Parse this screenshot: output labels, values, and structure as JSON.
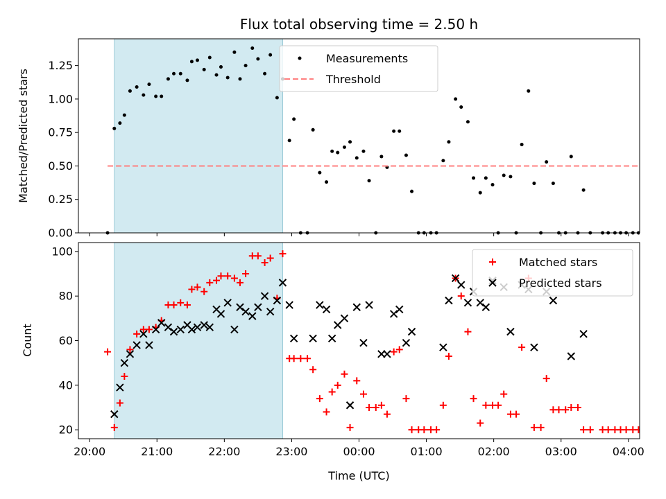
{
  "chart_data": [
    {
      "type": "scatter",
      "title": "Flux total observing time = 2.50 h",
      "xlabel": "",
      "ylabel": "Matched/Predicted stars",
      "xlim": [
        "20:00",
        "04:00"
      ],
      "ylim": [
        0,
        1.45
      ],
      "yticks": [
        0.0,
        0.25,
        0.5,
        0.75,
        1.0,
        1.25
      ],
      "ytick_labels": [
        "0.00",
        "0.25",
        "0.50",
        "0.75",
        "1.00",
        "1.25"
      ],
      "legend_position": "top-center",
      "grid": false,
      "shaded_span": {
        "x_start": "20:22",
        "x_end": "22:52",
        "color": "#add8e6"
      },
      "series": [
        {
          "name": "Measurements",
          "marker": "dot",
          "color": "#000000",
          "points": [
            [
              "20:16",
              0.0
            ],
            [
              "20:22",
              0.78
            ],
            [
              "20:27",
              0.82
            ],
            [
              "20:31",
              0.88
            ],
            [
              "20:36",
              1.06
            ],
            [
              "20:42",
              1.09
            ],
            [
              "20:48",
              1.03
            ],
            [
              "20:53",
              1.11
            ],
            [
              "20:59",
              1.02
            ],
            [
              "21:04",
              1.02
            ],
            [
              "21:10",
              1.15
            ],
            [
              "21:15",
              1.19
            ],
            [
              "21:21",
              1.19
            ],
            [
              "21:27",
              1.14
            ],
            [
              "21:31",
              1.28
            ],
            [
              "21:36",
              1.29
            ],
            [
              "21:42",
              1.22
            ],
            [
              "21:47",
              1.31
            ],
            [
              "21:53",
              1.18
            ],
            [
              "21:57",
              1.24
            ],
            [
              "22:03",
              1.16
            ],
            [
              "22:09",
              1.35
            ],
            [
              "22:14",
              1.15
            ],
            [
              "22:19",
              1.25
            ],
            [
              "22:25",
              1.38
            ],
            [
              "22:30",
              1.3
            ],
            [
              "22:36",
              1.19
            ],
            [
              "22:41",
              1.33
            ],
            [
              "22:47",
              1.01
            ],
            [
              "22:52",
              1.15
            ],
            [
              "22:58",
              0.69
            ],
            [
              "23:02",
              0.85
            ],
            [
              "23:08",
              0.0
            ],
            [
              "23:14",
              0.0
            ],
            [
              "23:19",
              0.77
            ],
            [
              "23:25",
              0.45
            ],
            [
              "23:31",
              0.38
            ],
            [
              "23:36",
              0.61
            ],
            [
              "23:41",
              0.6
            ],
            [
              "23:47",
              0.64
            ],
            [
              "23:52",
              0.68
            ],
            [
              "23:58",
              0.56
            ],
            [
              "00:04",
              0.61
            ],
            [
              "00:09",
              0.39
            ],
            [
              "00:15",
              0.0
            ],
            [
              "00:20",
              0.57
            ],
            [
              "00:25",
              0.49
            ],
            [
              "00:31",
              0.76
            ],
            [
              "00:36",
              0.76
            ],
            [
              "00:42",
              0.58
            ],
            [
              "00:47",
              0.31
            ],
            [
              "00:53",
              0.0
            ],
            [
              "00:58",
              0.0
            ],
            [
              "01:04",
              0.0
            ],
            [
              "01:09",
              0.0
            ],
            [
              "01:15",
              0.54
            ],
            [
              "01:20",
              0.68
            ],
            [
              "01:26",
              1.0
            ],
            [
              "01:31",
              0.94
            ],
            [
              "01:37",
              0.83
            ],
            [
              "01:42",
              0.41
            ],
            [
              "01:48",
              0.3
            ],
            [
              "01:53",
              0.41
            ],
            [
              "01:59",
              0.36
            ],
            [
              "02:04",
              0.0
            ],
            [
              "02:09",
              0.43
            ],
            [
              "02:15",
              0.42
            ],
            [
              "02:20",
              0.0
            ],
            [
              "02:25",
              0.66
            ],
            [
              "02:31",
              1.06
            ],
            [
              "02:36",
              0.37
            ],
            [
              "02:42",
              0.0
            ],
            [
              "02:47",
              0.53
            ],
            [
              "02:53",
              0.37
            ],
            [
              "02:58",
              0.0
            ],
            [
              "03:04",
              0.0
            ],
            [
              "03:09",
              0.57
            ],
            [
              "03:15",
              0.0
            ],
            [
              "03:20",
              0.32
            ],
            [
              "03:26",
              0.0
            ],
            [
              "03:37",
              0.0
            ],
            [
              "03:42",
              0.0
            ],
            [
              "03:48",
              0.0
            ],
            [
              "03:53",
              0.0
            ],
            [
              "03:58",
              0.0
            ],
            [
              "04:04",
              0.0
            ],
            [
              "04:09",
              0.0
            ],
            [
              "04:15",
              0.0
            ],
            [
              "04:20",
              0.0
            ]
          ]
        },
        {
          "name": "Threshold",
          "marker": "dashed-line",
          "color": "#ff7f7f",
          "points": [
            [
              "20:16",
              0.5
            ],
            [
              "04:20",
              0.5
            ]
          ]
        }
      ]
    },
    {
      "type": "scatter",
      "title": "",
      "xlabel": "Time (UTC)",
      "ylabel": "Count",
      "xlim": [
        "20:00",
        "04:00"
      ],
      "ylim": [
        16,
        104
      ],
      "yticks": [
        20,
        40,
        60,
        80,
        100
      ],
      "ytick_labels": [
        "20",
        "40",
        "60",
        "80",
        "100"
      ],
      "xticks": [
        "20:00",
        "21:00",
        "22:00",
        "23:00",
        "00:00",
        "01:00",
        "02:00",
        "03:00",
        "04:00"
      ],
      "legend_position": "top-right",
      "grid": false,
      "shaded_span": {
        "x_start": "20:22",
        "x_end": "22:52",
        "color": "#add8e6"
      },
      "series": [
        {
          "name": "Matched stars",
          "marker": "plus",
          "color": "#ff0000",
          "points": [
            [
              "20:16",
              55
            ],
            [
              "20:22",
              21
            ],
            [
              "20:27",
              32
            ],
            [
              "20:31",
              44
            ],
            [
              "20:36",
              56
            ],
            [
              "20:42",
              63
            ],
            [
              "20:48",
              65
            ],
            [
              "20:53",
              65
            ],
            [
              "20:59",
              66
            ],
            [
              "21:04",
              69
            ],
            [
              "21:10",
              76
            ],
            [
              "21:15",
              76
            ],
            [
              "21:21",
              77
            ],
            [
              "21:27",
              76
            ],
            [
              "21:31",
              83
            ],
            [
              "21:36",
              84
            ],
            [
              "21:42",
              82
            ],
            [
              "21:47",
              86
            ],
            [
              "21:53",
              87
            ],
            [
              "21:57",
              89
            ],
            [
              "22:03",
              89
            ],
            [
              "22:09",
              88
            ],
            [
              "22:14",
              86
            ],
            [
              "22:19",
              90
            ],
            [
              "22:25",
              98
            ],
            [
              "22:30",
              98
            ],
            [
              "22:36",
              95
            ],
            [
              "22:41",
              97
            ],
            [
              "22:47",
              79
            ],
            [
              "22:52",
              99
            ],
            [
              "22:58",
              52
            ],
            [
              "23:02",
              52
            ],
            [
              "23:08",
              52
            ],
            [
              "23:14",
              52
            ],
            [
              "23:19",
              47
            ],
            [
              "23:25",
              34
            ],
            [
              "23:31",
              28
            ],
            [
              "23:36",
              37
            ],
            [
              "23:41",
              40
            ],
            [
              "23:47",
              45
            ],
            [
              "23:52",
              21
            ],
            [
              "23:58",
              42
            ],
            [
              "00:04",
              36
            ],
            [
              "00:09",
              30
            ],
            [
              "00:15",
              30
            ],
            [
              "00:20",
              31
            ],
            [
              "00:25",
              27
            ],
            [
              "00:31",
              55
            ],
            [
              "00:36",
              56
            ],
            [
              "00:42",
              34
            ],
            [
              "00:47",
              20
            ],
            [
              "00:53",
              20
            ],
            [
              "00:58",
              20
            ],
            [
              "01:04",
              20
            ],
            [
              "01:09",
              20
            ],
            [
              "01:15",
              31
            ],
            [
              "01:20",
              53
            ],
            [
              "01:26",
              88
            ],
            [
              "01:31",
              80
            ],
            [
              "01:37",
              64
            ],
            [
              "01:42",
              34
            ],
            [
              "01:48",
              23
            ],
            [
              "01:53",
              31
            ],
            [
              "01:59",
              31
            ],
            [
              "02:04",
              31
            ],
            [
              "02:09",
              36
            ],
            [
              "02:15",
              27
            ],
            [
              "02:20",
              27
            ],
            [
              "02:25",
              57
            ],
            [
              "02:31",
              88
            ],
            [
              "02:36",
              21
            ],
            [
              "02:42",
              21
            ],
            [
              "02:47",
              43
            ],
            [
              "02:53",
              29
            ],
            [
              "02:58",
              29
            ],
            [
              "03:04",
              29
            ],
            [
              "03:09",
              30
            ],
            [
              "03:15",
              30
            ],
            [
              "03:20",
              20
            ],
            [
              "03:26",
              20
            ],
            [
              "03:37",
              20
            ],
            [
              "03:42",
              20
            ],
            [
              "03:48",
              20
            ],
            [
              "03:53",
              20
            ],
            [
              "03:58",
              20
            ],
            [
              "04:04",
              20
            ],
            [
              "04:09",
              20
            ],
            [
              "04:15",
              20
            ],
            [
              "04:20",
              20
            ]
          ]
        },
        {
          "name": "Predicted stars",
          "marker": "x",
          "color": "#000000",
          "points": [
            [
              "20:22",
              27
            ],
            [
              "20:27",
              39
            ],
            [
              "20:31",
              50
            ],
            [
              "20:36",
              54
            ],
            [
              "20:42",
              58
            ],
            [
              "20:48",
              63
            ],
            [
              "20:53",
              58
            ],
            [
              "20:59",
              65
            ],
            [
              "21:04",
              68
            ],
            [
              "21:10",
              66
            ],
            [
              "21:15",
              64
            ],
            [
              "21:21",
              65
            ],
            [
              "21:27",
              67
            ],
            [
              "21:31",
              65
            ],
            [
              "21:36",
              66
            ],
            [
              "21:42",
              67
            ],
            [
              "21:47",
              66
            ],
            [
              "21:53",
              74
            ],
            [
              "21:57",
              72
            ],
            [
              "22:03",
              77
            ],
            [
              "22:09",
              65
            ],
            [
              "22:14",
              75
            ],
            [
              "22:19",
              73
            ],
            [
              "22:25",
              71
            ],
            [
              "22:30",
              75
            ],
            [
              "22:36",
              80
            ],
            [
              "22:41",
              73
            ],
            [
              "22:47",
              78
            ],
            [
              "22:52",
              86
            ],
            [
              "22:58",
              76
            ],
            [
              "23:02",
              61
            ],
            [
              "23:19",
              61
            ],
            [
              "23:25",
              76
            ],
            [
              "23:31",
              74
            ],
            [
              "23:36",
              61
            ],
            [
              "23:41",
              67
            ],
            [
              "23:47",
              70
            ],
            [
              "23:52",
              31
            ],
            [
              "23:58",
              75
            ],
            [
              "00:04",
              59
            ],
            [
              "00:09",
              76
            ],
            [
              "00:20",
              54
            ],
            [
              "00:25",
              54
            ],
            [
              "00:31",
              72
            ],
            [
              "00:36",
              74
            ],
            [
              "00:42",
              59
            ],
            [
              "00:47",
              64
            ],
            [
              "01:15",
              57
            ],
            [
              "01:20",
              78
            ],
            [
              "01:26",
              88
            ],
            [
              "01:31",
              85
            ],
            [
              "01:37",
              77
            ],
            [
              "01:42",
              82
            ],
            [
              "01:48",
              77
            ],
            [
              "01:53",
              75
            ],
            [
              "01:59",
              87
            ],
            [
              "02:09",
              84
            ],
            [
              "02:15",
              64
            ],
            [
              "02:25",
              85
            ],
            [
              "02:31",
              83
            ],
            [
              "02:36",
              57
            ],
            [
              "02:47",
              82
            ],
            [
              "02:53",
              78
            ],
            [
              "03:09",
              53
            ],
            [
              "03:20",
              63
            ]
          ]
        }
      ]
    }
  ]
}
